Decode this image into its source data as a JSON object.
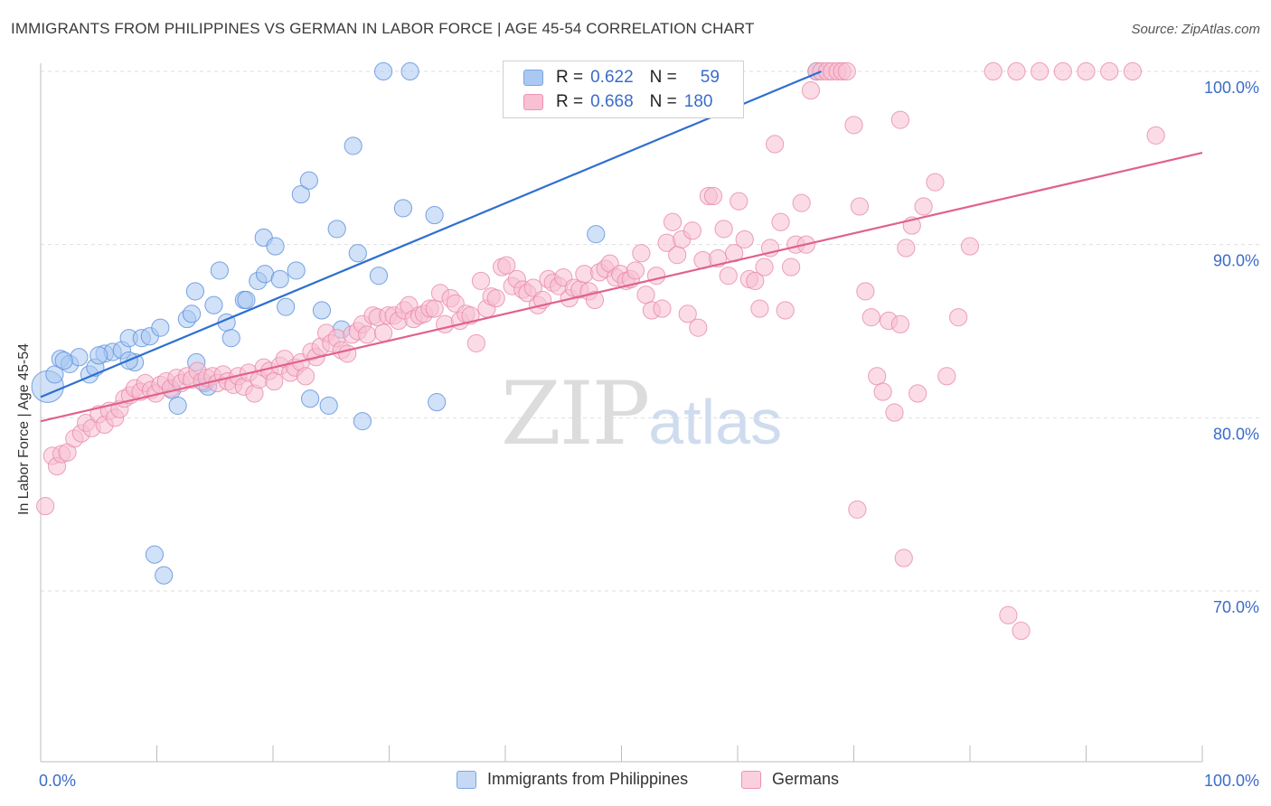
{
  "title": "IMMIGRANTS FROM PHILIPPINES VS GERMAN IN LABOR FORCE | AGE 45-54 CORRELATION CHART",
  "source": "Source: ZipAtlas.com",
  "watermark": {
    "zip": "ZIP",
    "atlas": "atlas"
  },
  "legend_top": {
    "rows": [
      {
        "r_label": "R =",
        "r_value": "0.622",
        "n_label": "N =",
        "n_value": "59",
        "color": "#aac8f2",
        "border": "#7aa6e3"
      },
      {
        "r_label": "R =",
        "r_value": "0.668",
        "n_label": "N =",
        "n_value": "180",
        "color": "#f8c0d2",
        "border": "#ee93b2"
      }
    ]
  },
  "legend_bottom": [
    {
      "label": "Immigrants from Philippines",
      "color": "#c5d9f5",
      "border": "#7aa6e3"
    },
    {
      "label": "Germans",
      "color": "#fbd0de",
      "border": "#ee93b2"
    }
  ],
  "chart_data": {
    "type": "scatter",
    "xlabel": "",
    "ylabel": "In Labor Force | Age 45-54",
    "xlim": [
      0,
      100
    ],
    "ylim": [
      60.5,
      101
    ],
    "x_tick_labels": [
      "0.0%",
      "100.0%"
    ],
    "y_ticks": [
      70,
      80,
      90,
      100
    ],
    "y_tick_labels": [
      "70.0%",
      "80.0%",
      "90.0%",
      "100.0%"
    ],
    "grid": true,
    "series": [
      {
        "name": "Immigrants from Philippines",
        "color": "#5b8fdc",
        "fill": "#aac8f2",
        "trend": {
          "x": [
            0,
            67.2
          ],
          "y": [
            81.2,
            100.0
          ],
          "color": "#2e6fd0"
        },
        "points": [
          [
            0.6,
            81.8,
            2.2
          ],
          [
            1.2,
            82.5,
            1.2
          ],
          [
            1.7,
            83.4,
            1.2
          ],
          [
            2.5,
            83.1,
            1.2
          ],
          [
            3.3,
            83.5,
            1.2
          ],
          [
            4.2,
            82.5,
            1.2
          ],
          [
            4.7,
            82.9,
            1.2
          ],
          [
            5.5,
            83.7,
            1.2
          ],
          [
            6.2,
            83.8,
            1.2
          ],
          [
            7.0,
            83.9,
            1.2
          ],
          [
            7.6,
            84.6,
            1.2
          ],
          [
            8.1,
            83.2,
            1.2
          ],
          [
            8.7,
            84.6,
            1.2
          ],
          [
            9.4,
            84.7,
            1.2
          ],
          [
            10.3,
            85.2,
            1.2
          ],
          [
            11.3,
            81.6,
            1.2
          ],
          [
            11.8,
            80.7,
            1.2
          ],
          [
            12.6,
            85.7,
            1.2
          ],
          [
            13.0,
            86.0,
            1.2
          ],
          [
            13.3,
            87.3,
            1.2
          ],
          [
            14.1,
            82.0,
            1.2
          ],
          [
            14.4,
            81.8,
            1.2
          ],
          [
            14.9,
            86.5,
            1.2
          ],
          [
            15.4,
            88.5,
            1.2
          ],
          [
            16.0,
            85.5,
            1.2
          ],
          [
            16.4,
            84.6,
            1.2
          ],
          [
            17.5,
            86.8,
            1.2
          ],
          [
            17.7,
            86.8,
            1.2
          ],
          [
            18.7,
            87.9,
            1.2
          ],
          [
            19.2,
            90.4,
            1.2
          ],
          [
            19.3,
            88.3,
            1.2
          ],
          [
            20.2,
            89.9,
            1.2
          ],
          [
            20.6,
            88.0,
            1.2
          ],
          [
            21.1,
            86.4,
            1.2
          ],
          [
            22.0,
            88.5,
            1.2
          ],
          [
            22.4,
            92.9,
            1.2
          ],
          [
            23.1,
            93.7,
            1.2
          ],
          [
            23.2,
            81.1,
            1.2
          ],
          [
            24.2,
            86.2,
            1.2
          ],
          [
            24.8,
            80.7,
            1.2
          ],
          [
            25.5,
            90.9,
            1.2
          ],
          [
            25.9,
            85.1,
            1.2
          ],
          [
            26.9,
            95.7,
            1.2
          ],
          [
            27.3,
            89.5,
            1.2
          ],
          [
            27.7,
            79.8,
            1.2
          ],
          [
            29.1,
            88.2,
            1.2
          ],
          [
            29.5,
            100.0,
            1.2
          ],
          [
            31.2,
            92.1,
            1.2
          ],
          [
            31.8,
            100.0,
            1.2
          ],
          [
            33.9,
            91.7,
            1.2
          ],
          [
            34.1,
            80.9,
            1.2
          ],
          [
            47.8,
            90.6,
            1.2
          ],
          [
            66.8,
            100.0,
            1.2
          ],
          [
            9.8,
            72.1,
            1.2
          ],
          [
            10.6,
            70.9,
            1.2
          ],
          [
            5.0,
            83.6,
            1.2
          ],
          [
            13.4,
            83.2,
            1.2
          ],
          [
            7.6,
            83.3,
            1.2
          ],
          [
            2.0,
            83.3,
            1.2
          ]
        ]
      },
      {
        "name": "Germans",
        "color": "#e88aa8",
        "fill": "#f8c0d2",
        "trend": {
          "x": [
            0,
            100
          ],
          "y": [
            79.8,
            95.3
          ],
          "color": "#e0628c"
        },
        "points": [
          [
            0.4,
            74.9
          ],
          [
            1.0,
            77.8
          ],
          [
            1.4,
            77.2
          ],
          [
            1.8,
            77.9
          ],
          [
            2.3,
            78.0
          ],
          [
            2.9,
            78.8
          ],
          [
            3.5,
            79.1
          ],
          [
            3.9,
            79.7
          ],
          [
            4.4,
            79.4
          ],
          [
            5.0,
            80.2
          ],
          [
            5.5,
            79.6
          ],
          [
            5.9,
            80.4
          ],
          [
            6.4,
            80.0
          ],
          [
            6.8,
            80.5
          ],
          [
            7.2,
            81.1
          ],
          [
            7.7,
            81.3
          ],
          [
            8.1,
            81.7
          ],
          [
            8.6,
            81.5
          ],
          [
            9.0,
            82.0
          ],
          [
            9.5,
            81.6
          ],
          [
            9.9,
            81.4
          ],
          [
            10.3,
            81.9
          ],
          [
            10.8,
            82.1
          ],
          [
            11.2,
            81.7
          ],
          [
            11.7,
            82.3
          ],
          [
            12.1,
            82.0
          ],
          [
            12.6,
            82.4
          ],
          [
            13.0,
            82.2
          ],
          [
            13.5,
            82.7
          ],
          [
            13.9,
            82.1
          ],
          [
            14.3,
            82.3
          ],
          [
            14.8,
            82.4
          ],
          [
            15.2,
            82.0
          ],
          [
            15.7,
            82.5
          ],
          [
            16.1,
            82.1
          ],
          [
            16.6,
            81.9
          ],
          [
            17.0,
            82.4
          ],
          [
            17.5,
            81.8
          ],
          [
            17.9,
            82.6
          ],
          [
            18.4,
            81.4
          ],
          [
            18.8,
            82.2
          ],
          [
            19.2,
            82.9
          ],
          [
            19.7,
            82.7
          ],
          [
            20.1,
            82.1
          ],
          [
            20.6,
            83.0
          ],
          [
            21.0,
            83.4
          ],
          [
            21.5,
            82.6
          ],
          [
            21.9,
            82.9
          ],
          [
            22.4,
            83.2
          ],
          [
            22.8,
            82.4
          ],
          [
            23.3,
            83.8
          ],
          [
            23.7,
            83.5
          ],
          [
            24.1,
            84.1
          ],
          [
            24.6,
            84.9
          ],
          [
            25.0,
            84.3
          ],
          [
            25.5,
            84.6
          ],
          [
            25.9,
            83.9
          ],
          [
            26.4,
            83.7
          ],
          [
            26.8,
            84.8
          ],
          [
            27.3,
            85.0
          ],
          [
            27.7,
            85.4
          ],
          [
            28.1,
            84.8
          ],
          [
            28.6,
            85.9
          ],
          [
            29.0,
            85.8
          ],
          [
            29.5,
            84.9
          ],
          [
            29.9,
            85.9
          ],
          [
            30.4,
            85.9
          ],
          [
            30.8,
            85.6
          ],
          [
            31.3,
            86.2
          ],
          [
            31.7,
            86.5
          ],
          [
            32.1,
            85.7
          ],
          [
            32.6,
            85.9
          ],
          [
            33.0,
            86.0
          ],
          [
            33.5,
            86.3
          ],
          [
            33.9,
            86.3
          ],
          [
            34.4,
            87.2
          ],
          [
            34.8,
            85.4
          ],
          [
            35.3,
            86.9
          ],
          [
            35.7,
            86.6
          ],
          [
            36.1,
            85.6
          ],
          [
            36.6,
            86.0
          ],
          [
            37.0,
            85.9
          ],
          [
            37.5,
            84.3
          ],
          [
            37.9,
            87.9
          ],
          [
            38.4,
            86.3
          ],
          [
            38.8,
            87.0
          ],
          [
            39.2,
            86.9
          ],
          [
            39.7,
            88.7
          ],
          [
            40.1,
            88.8
          ],
          [
            40.6,
            87.6
          ],
          [
            41.0,
            88.0
          ],
          [
            41.5,
            87.4
          ],
          [
            41.9,
            87.2
          ],
          [
            42.4,
            87.5
          ],
          [
            42.8,
            86.5
          ],
          [
            43.2,
            86.8
          ],
          [
            43.7,
            88.0
          ],
          [
            44.1,
            87.8
          ],
          [
            44.6,
            87.6
          ],
          [
            45.0,
            88.1
          ],
          [
            45.5,
            86.9
          ],
          [
            45.9,
            87.5
          ],
          [
            46.4,
            87.4
          ],
          [
            46.8,
            88.3
          ],
          [
            47.2,
            87.3
          ],
          [
            47.7,
            86.8
          ],
          [
            48.1,
            88.4
          ],
          [
            48.6,
            88.6
          ],
          [
            49.0,
            88.9
          ],
          [
            49.5,
            88.1
          ],
          [
            49.9,
            88.3
          ],
          [
            50.4,
            87.9
          ],
          [
            50.8,
            88.0
          ],
          [
            51.2,
            88.5
          ],
          [
            51.7,
            89.5
          ],
          [
            52.1,
            87.1
          ],
          [
            52.6,
            86.2
          ],
          [
            53.0,
            88.2
          ],
          [
            53.5,
            86.3
          ],
          [
            53.9,
            90.1
          ],
          [
            54.4,
            91.3
          ],
          [
            54.8,
            89.4
          ],
          [
            55.2,
            90.3
          ],
          [
            55.7,
            86.0
          ],
          [
            56.1,
            90.8
          ],
          [
            56.6,
            85.2
          ],
          [
            57.0,
            89.1
          ],
          [
            57.5,
            92.8
          ],
          [
            57.9,
            92.8
          ],
          [
            58.3,
            89.2
          ],
          [
            58.8,
            90.9
          ],
          [
            59.2,
            88.2
          ],
          [
            59.7,
            89.5
          ],
          [
            60.1,
            92.5
          ],
          [
            60.6,
            90.3
          ],
          [
            61.0,
            88.0
          ],
          [
            61.5,
            87.9
          ],
          [
            61.9,
            86.3
          ],
          [
            62.3,
            88.7
          ],
          [
            62.8,
            89.8
          ],
          [
            63.2,
            95.8
          ],
          [
            63.7,
            91.3
          ],
          [
            64.1,
            86.2
          ],
          [
            64.6,
            88.7
          ],
          [
            65.0,
            90.0
          ],
          [
            65.5,
            92.4
          ],
          [
            65.9,
            90.0
          ],
          [
            66.3,
            98.9
          ],
          [
            66.8,
            100.0
          ],
          [
            67.2,
            100.0
          ],
          [
            67.7,
            100.0
          ],
          [
            68.1,
            100.0
          ],
          [
            68.6,
            100.0
          ],
          [
            69.0,
            100.0
          ],
          [
            69.4,
            100.0
          ],
          [
            70.0,
            96.9
          ],
          [
            70.5,
            92.2
          ],
          [
            71.0,
            87.3
          ],
          [
            71.5,
            85.8
          ],
          [
            72.0,
            82.4
          ],
          [
            72.5,
            81.5
          ],
          [
            73.0,
            85.6
          ],
          [
            73.5,
            80.3
          ],
          [
            74.0,
            97.2
          ],
          [
            74.5,
            89.8
          ],
          [
            75.0,
            91.1
          ],
          [
            75.5,
            81.4
          ],
          [
            76.0,
            92.2
          ],
          [
            78.0,
            82.4
          ],
          [
            80.0,
            89.9
          ],
          [
            82.0,
            100.0
          ],
          [
            84.0,
            100.0
          ],
          [
            86.0,
            100.0
          ],
          [
            88.0,
            100.0
          ],
          [
            90.0,
            100.0
          ],
          [
            92.0,
            100.0
          ],
          [
            94.0,
            100.0
          ],
          [
            96.0,
            96.3
          ],
          [
            70.3,
            74.7
          ],
          [
            74.3,
            71.9
          ],
          [
            83.3,
            68.6
          ],
          [
            84.4,
            67.7
          ],
          [
            74.0,
            85.4
          ],
          [
            77.0,
            93.6
          ],
          [
            79.0,
            85.8
          ]
        ]
      }
    ]
  }
}
